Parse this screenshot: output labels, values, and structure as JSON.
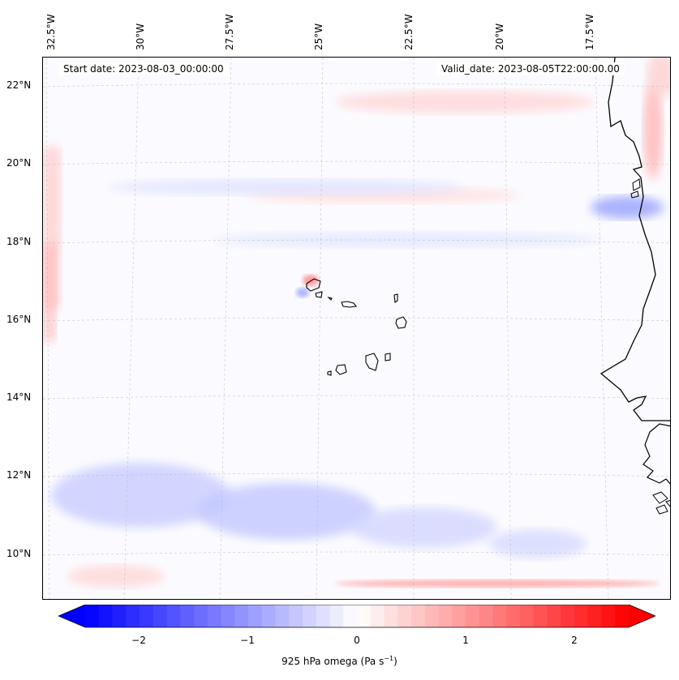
{
  "header": {
    "start_date": "Start date: 2023-08-03_00:00:00",
    "valid_date": "Valid_date: 2023-08-05T22:00:00.00"
  },
  "longitude_labels": [
    "32.5°W",
    "30°W",
    "27.5°W",
    "25°W",
    "22.5°W",
    "20°W",
    "17.5°W"
  ],
  "latitude_labels": [
    "22°N",
    "20°N",
    "18°N",
    "16°N",
    "14°N",
    "12°N",
    "10°N"
  ],
  "colorbar": {
    "label_prefix": "925 hPa omega (Pa s",
    "label_exponent": "−1",
    "label_suffix": ")",
    "ticks": [
      "−2",
      "−1",
      "0",
      "1",
      "2"
    ],
    "tick_values": [
      -2,
      -1,
      0,
      1,
      2
    ],
    "range": [
      -2.75,
      2.75
    ],
    "colors": {
      "negative": "#0000ff",
      "zero": "#ffffff",
      "positive": "#ff0000"
    }
  },
  "map": {
    "colormap": "bwr",
    "gridlines": true,
    "coastline_color": "#000000",
    "extent_lon": [
      -33.0,
      -16.0
    ],
    "extent_lat": [
      9.0,
      23.0
    ]
  }
}
